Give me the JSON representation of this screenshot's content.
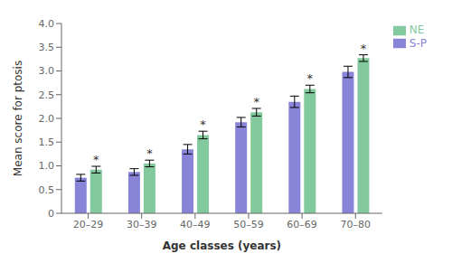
{
  "chart_data": {
    "type": "bar",
    "categories": [
      "20–29",
      "30–39",
      "40–49",
      "50–59",
      "60–69",
      "70–80"
    ],
    "series": [
      {
        "name": "S-P",
        "color": "#8884d8",
        "values": [
          0.75,
          0.87,
          1.35,
          1.92,
          2.35,
          2.98
        ],
        "errors": [
          0.07,
          0.07,
          0.1,
          0.1,
          0.12,
          0.12
        ]
      },
      {
        "name": "NE",
        "color": "#82ca9d",
        "values": [
          0.92,
          1.05,
          1.65,
          2.13,
          2.62,
          3.27
        ],
        "errors": [
          0.07,
          0.07,
          0.08,
          0.08,
          0.08,
          0.07
        ]
      }
    ],
    "ylabel": "Mean score for ptosis",
    "xlabel": "Age classes (years)",
    "ylim": [
      0,
      4
    ],
    "yticks": [
      0,
      0.5,
      {
        "value": 1,
        "label": "1.0"
      },
      1.5,
      {
        "value": 2,
        "label": "2.0"
      },
      2.5,
      {
        "value": 3,
        "label": "3.0"
      },
      3.5,
      {
        "value": 4,
        "label": "4.0"
      }
    ],
    "annotations": [
      {
        "text": "*",
        "series": "NE",
        "category": "20–29"
      },
      {
        "text": "*",
        "series": "NE",
        "category": "30–39"
      },
      {
        "text": "*",
        "series": "NE",
        "category": "40–49"
      },
      {
        "text": "*",
        "series": "NE",
        "category": "50–59"
      },
      {
        "text": "*",
        "series": "NE",
        "category": "60–69"
      },
      {
        "text": "*",
        "series": "NE",
        "category": "70–80"
      }
    ],
    "grid": false,
    "legend": "right"
  }
}
